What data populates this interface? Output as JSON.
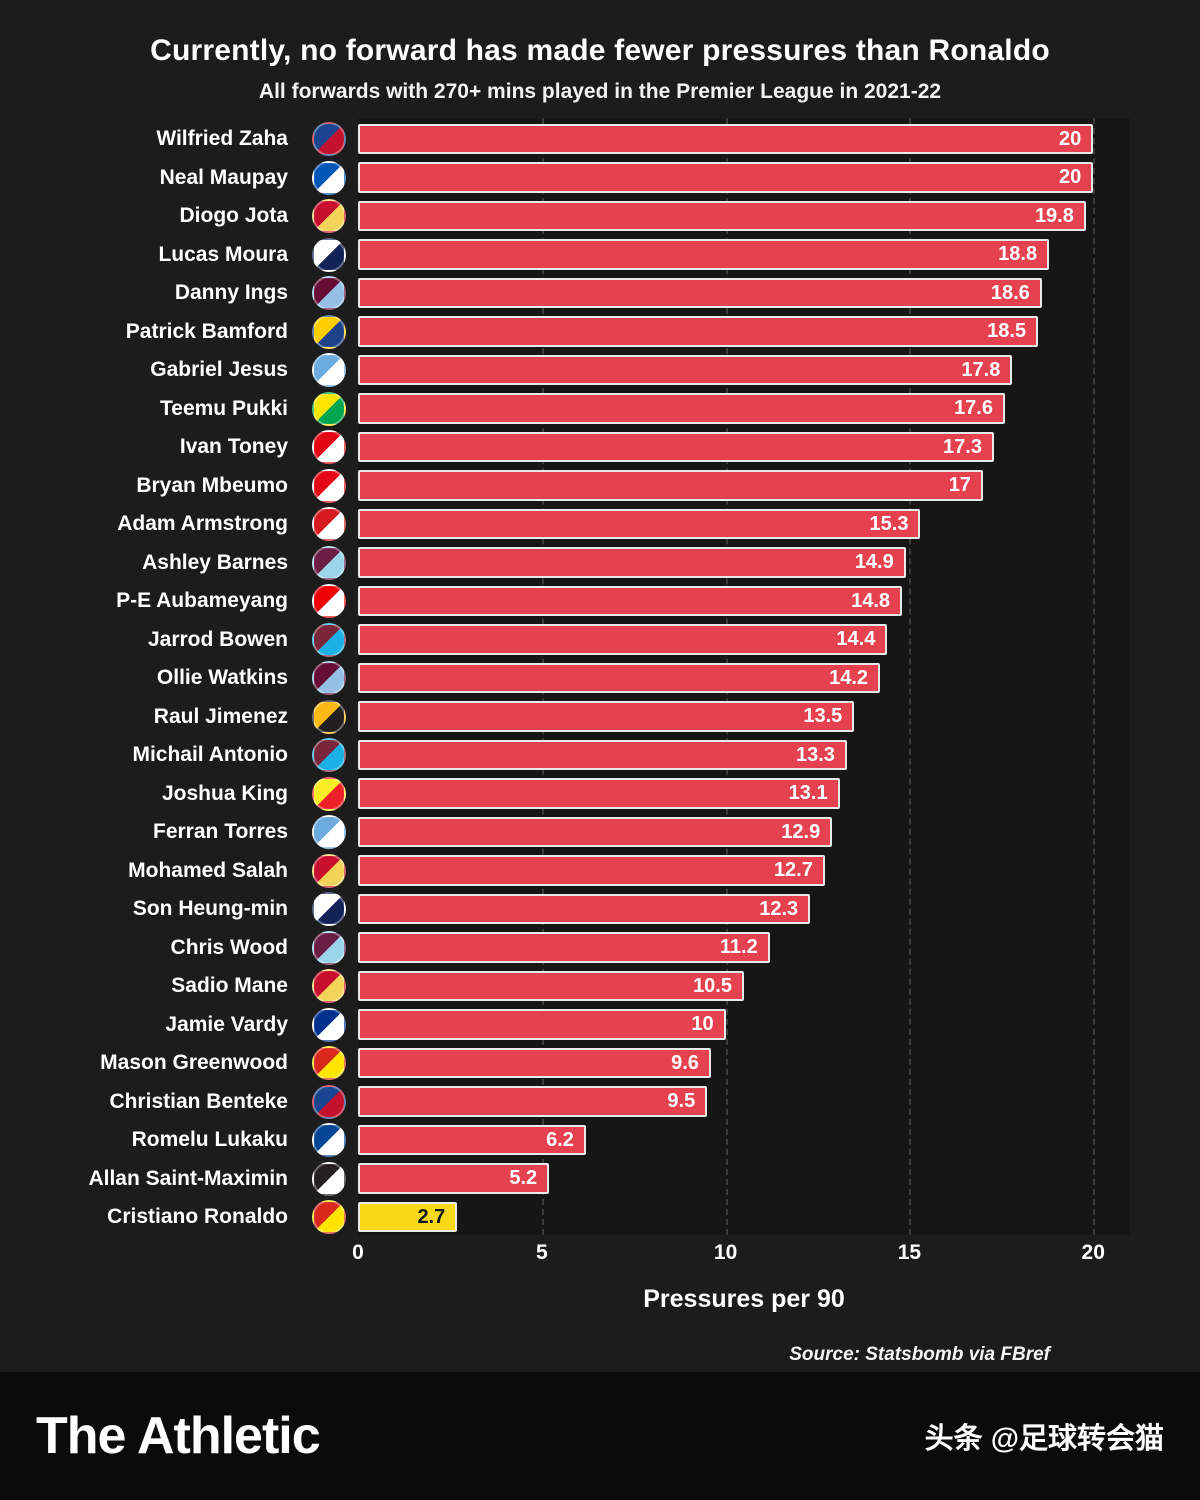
{
  "title": "Currently, no forward has made fewer pressures than Ronaldo",
  "subtitle": "All forwards with 270+ mins played in the Premier League in 2021-22",
  "chart_data": {
    "type": "bar",
    "orientation": "horizontal",
    "title": "Currently, no forward has made fewer pressures than Ronaldo",
    "subtitle": "All forwards with 270+ mins played in the Premier League in 2021-22",
    "xlabel": "Pressures per 90",
    "xlim": [
      0,
      21
    ],
    "xticks": [
      0,
      5,
      10,
      15,
      20
    ],
    "grid": "dashed-vertical",
    "bar_color": "#e5414f",
    "highlight_color": "#f7d917",
    "players": [
      {
        "name": "Wilfried Zaha",
        "team": "crystal-palace",
        "value": 20,
        "label": "20",
        "crest": [
          "#1b458f",
          "#c4122e"
        ],
        "highlight": false
      },
      {
        "name": "Neal Maupay",
        "team": "brighton",
        "value": 20,
        "label": "20",
        "crest": [
          "#0057b8",
          "#ffffff"
        ],
        "highlight": false
      },
      {
        "name": "Diogo Jota",
        "team": "liverpool",
        "value": 19.8,
        "label": "19.8",
        "crest": [
          "#c8102e",
          "#f3d459"
        ],
        "highlight": false
      },
      {
        "name": "Lucas Moura",
        "team": "tottenham",
        "value": 18.8,
        "label": "18.8",
        "crest": [
          "#ffffff",
          "#132257"
        ],
        "highlight": false
      },
      {
        "name": "Danny Ings",
        "team": "aston-villa",
        "value": 18.6,
        "label": "18.6",
        "crest": [
          "#670e36",
          "#95bfe5"
        ],
        "highlight": false
      },
      {
        "name": "Patrick Bamford",
        "team": "leeds",
        "value": 18.5,
        "label": "18.5",
        "crest": [
          "#ffcd00",
          "#1d428a"
        ],
        "highlight": false
      },
      {
        "name": "Gabriel Jesus",
        "team": "man-city",
        "value": 17.8,
        "label": "17.8",
        "crest": [
          "#6cabdd",
          "#ffffff"
        ],
        "highlight": false
      },
      {
        "name": "Teemu Pukki",
        "team": "norwich",
        "value": 17.6,
        "label": "17.6",
        "crest": [
          "#ffe600",
          "#00a650"
        ],
        "highlight": false
      },
      {
        "name": "Ivan Toney",
        "team": "brentford",
        "value": 17.3,
        "label": "17.3",
        "crest": [
          "#e30613",
          "#ffffff"
        ],
        "highlight": false
      },
      {
        "name": "Bryan Mbeumo",
        "team": "brentford",
        "value": 17,
        "label": "17",
        "crest": [
          "#e30613",
          "#ffffff"
        ],
        "highlight": false
      },
      {
        "name": "Adam Armstrong",
        "team": "southampton",
        "value": 15.3,
        "label": "15.3",
        "crest": [
          "#d71920",
          "#ffffff"
        ],
        "highlight": false
      },
      {
        "name": "Ashley Barnes",
        "team": "burnley",
        "value": 14.9,
        "label": "14.9",
        "crest": [
          "#6c1d45",
          "#99d6ea"
        ],
        "highlight": false
      },
      {
        "name": "P-E Aubameyang",
        "team": "arsenal",
        "value": 14.8,
        "label": "14.8",
        "crest": [
          "#ef0107",
          "#ffffff"
        ],
        "highlight": false
      },
      {
        "name": "Jarrod Bowen",
        "team": "west-ham",
        "value": 14.4,
        "label": "14.4",
        "crest": [
          "#7a263a",
          "#1bb1e7"
        ],
        "highlight": false
      },
      {
        "name": "Ollie Watkins",
        "team": "aston-villa",
        "value": 14.2,
        "label": "14.2",
        "crest": [
          "#670e36",
          "#95bfe5"
        ],
        "highlight": false
      },
      {
        "name": "Raul Jimenez",
        "team": "wolves",
        "value": 13.5,
        "label": "13.5",
        "crest": [
          "#fdb913",
          "#231f20"
        ],
        "highlight": false
      },
      {
        "name": "Michail Antonio",
        "team": "west-ham",
        "value": 13.3,
        "label": "13.3",
        "crest": [
          "#7a263a",
          "#1bb1e7"
        ],
        "highlight": false
      },
      {
        "name": "Joshua King",
        "team": "watford",
        "value": 13.1,
        "label": "13.1",
        "crest": [
          "#fbee23",
          "#ed2127"
        ],
        "highlight": false
      },
      {
        "name": "Ferran Torres",
        "team": "man-city",
        "value": 12.9,
        "label": "12.9",
        "crest": [
          "#6cabdd",
          "#ffffff"
        ],
        "highlight": false
      },
      {
        "name": "Mohamed Salah",
        "team": "liverpool",
        "value": 12.7,
        "label": "12.7",
        "crest": [
          "#c8102e",
          "#f3d459"
        ],
        "highlight": false
      },
      {
        "name": "Son Heung-min",
        "team": "tottenham",
        "value": 12.3,
        "label": "12.3",
        "crest": [
          "#ffffff",
          "#132257"
        ],
        "highlight": false
      },
      {
        "name": "Chris Wood",
        "team": "burnley",
        "value": 11.2,
        "label": "11.2",
        "crest": [
          "#6c1d45",
          "#99d6ea"
        ],
        "highlight": false
      },
      {
        "name": "Sadio Mane",
        "team": "liverpool",
        "value": 10.5,
        "label": "10.5",
        "crest": [
          "#c8102e",
          "#f3d459"
        ],
        "highlight": false
      },
      {
        "name": "Jamie Vardy",
        "team": "leicester",
        "value": 10,
        "label": "10",
        "crest": [
          "#003090",
          "#ffffff"
        ],
        "highlight": false
      },
      {
        "name": "Mason Greenwood",
        "team": "man-united",
        "value": 9.6,
        "label": "9.6",
        "crest": [
          "#da291c",
          "#ffe500"
        ],
        "highlight": false
      },
      {
        "name": "Christian Benteke",
        "team": "crystal-palace",
        "value": 9.5,
        "label": "9.5",
        "crest": [
          "#1b458f",
          "#c4122e"
        ],
        "highlight": false
      },
      {
        "name": "Romelu Lukaku",
        "team": "chelsea",
        "value": 6.2,
        "label": "6.2",
        "crest": [
          "#034694",
          "#ffffff"
        ],
        "highlight": false
      },
      {
        "name": "Allan Saint-Maximin",
        "team": "newcastle",
        "value": 5.2,
        "label": "5.2",
        "crest": [
          "#241f20",
          "#ffffff"
        ],
        "highlight": false
      },
      {
        "name": "Cristiano Ronaldo",
        "team": "man-united",
        "value": 2.7,
        "label": "2.7",
        "crest": [
          "#da291c",
          "#ffe500"
        ],
        "highlight": true
      }
    ]
  },
  "source": "Source: Statsbomb via FBref",
  "footer": {
    "brand": "The Athletic",
    "watermark": "头条 @足球转会猫"
  }
}
